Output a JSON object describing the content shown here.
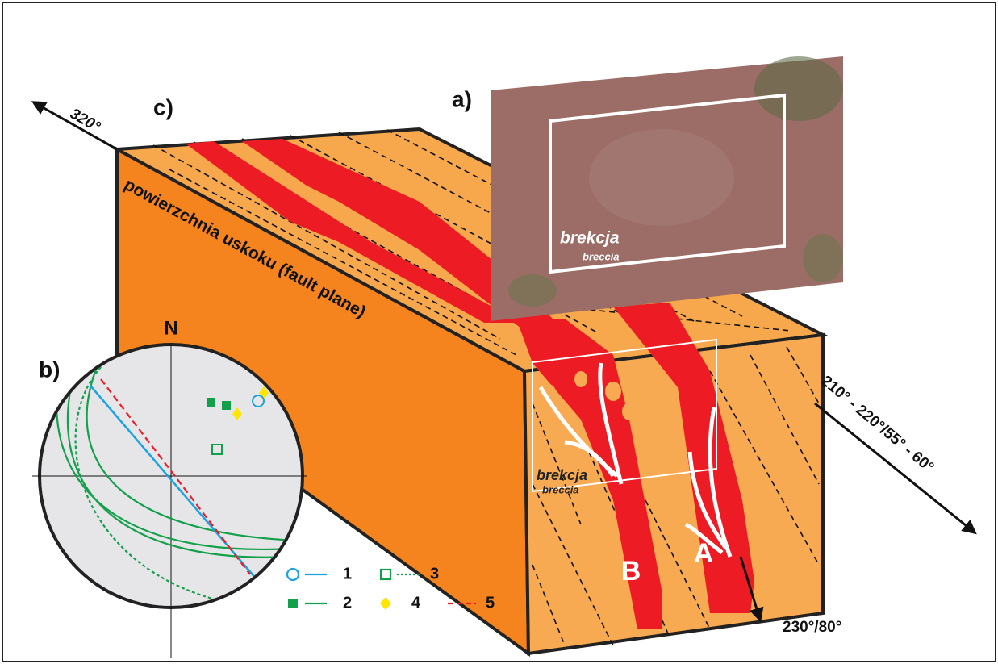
{
  "panels": {
    "a": "a)",
    "b": "b)",
    "c": "c)"
  },
  "directions": {
    "nw": "320°",
    "se": "210° - 220°/55° - 60°",
    "down": "230°/80°"
  },
  "fault_plane_label": "powierzchnia uskoku (fault plane)",
  "photo": {
    "label": "brekcja",
    "sublabel": "breccia"
  },
  "block": {
    "label": "brekcja",
    "sublabel": "breccia",
    "zone_a": "A",
    "zone_b": "B"
  },
  "stereonet": {
    "north": "N"
  },
  "legend": [
    "1",
    "2",
    "3",
    "4",
    "5"
  ]
}
